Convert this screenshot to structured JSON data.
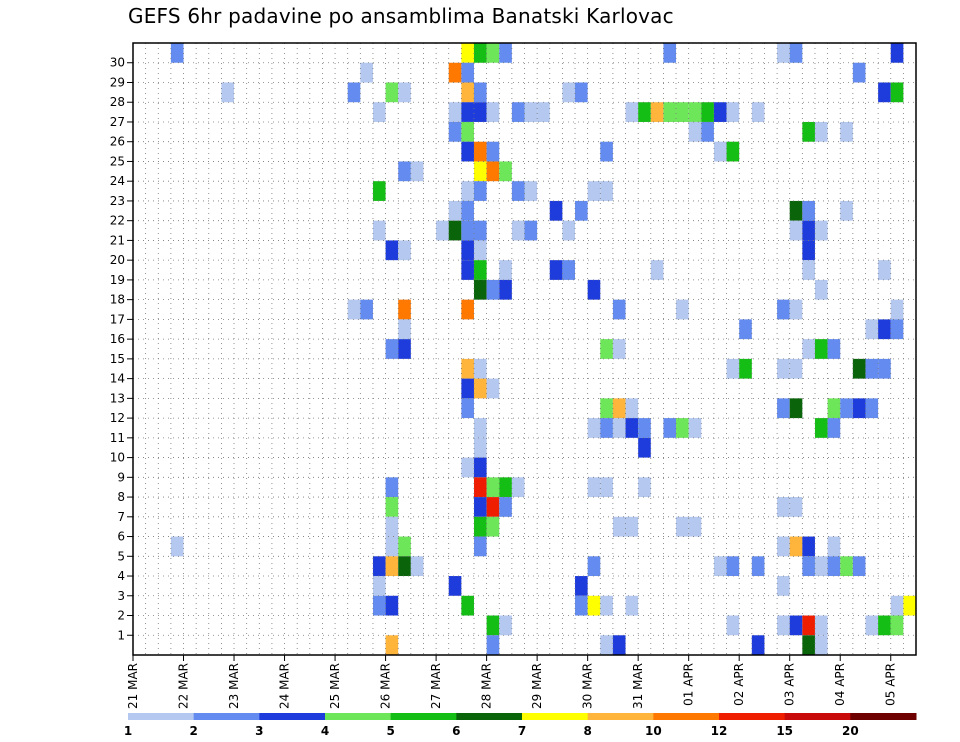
{
  "chart_data": {
    "type": "heatmap",
    "title": "GEFS 6hr padavine po ansamblima Banatski Karlovac",
    "xlabel": "",
    "ylabel": "",
    "x_tick_labels": [
      "21 MAR",
      "22 MAR",
      "23 MAR",
      "24 MAR",
      "25 MAR",
      "26 MAR",
      "27 MAR",
      "28 MAR",
      "29 MAR",
      "30 MAR",
      "31 MAR",
      "01 APR",
      "02 APR",
      "03 APR",
      "04 APR",
      "05 APR"
    ],
    "y_tick_labels": [
      "1",
      "2",
      "3",
      "4",
      "5",
      "6",
      "7",
      "8",
      "9",
      "10",
      "11",
      "12",
      "13",
      "14",
      "15",
      "16",
      "17",
      "18",
      "19",
      "20",
      "21",
      "22",
      "23",
      "24",
      "25",
      "26",
      "27",
      "28",
      "29",
      "30"
    ],
    "x_range_steps": [
      0,
      61
    ],
    "y_range_members": [
      0,
      30
    ],
    "steps_per_day": 4,
    "grid": "dotted",
    "legend": {
      "placement": "bottom",
      "labels": [
        "1",
        "2",
        "3",
        "4",
        "5",
        "6",
        "7",
        "8",
        "10",
        "12",
        "15",
        "20"
      ],
      "colors": [
        "#b4c8f0",
        "#648cf0",
        "#1e3cdc",
        "#6ee65a",
        "#14be14",
        "#0a640a",
        "#ffff00",
        "#ffb43c",
        "#ff7800",
        "#f01e00",
        "#c80a0a",
        "#6e0000"
      ]
    },
    "color_bins": {
      "bin1": "#b4c8f0",
      "bin2": "#648cf0",
      "bin3": "#1e3cdc",
      "bin4": "#6ee65a",
      "bin5": "#14be14",
      "bin6": "#0a640a",
      "bin7": "#ffff00",
      "bin8": "#ffb43c",
      "bin10": "#ff7800",
      "bin12": "#f01e00",
      "bin15": "#c80a0a",
      "bin20": "#6e0000"
    },
    "cells_note": "each cell = [forecast_step, member, bin]",
    "cells": [
      [
        3,
        30,
        2
      ],
      [
        26,
        30,
        7
      ],
      [
        27,
        30,
        5
      ],
      [
        28,
        30,
        4
      ],
      [
        29,
        30,
        2
      ],
      [
        42,
        30,
        2
      ],
      [
        51,
        30,
        1
      ],
      [
        52,
        30,
        2
      ],
      [
        60,
        30,
        3
      ],
      [
        18,
        29,
        1
      ],
      [
        25,
        29,
        10
      ],
      [
        26,
        29,
        2
      ],
      [
        57,
        29,
        2
      ],
      [
        7,
        28,
        1
      ],
      [
        17,
        28,
        2
      ],
      [
        20,
        28,
        4
      ],
      [
        21,
        28,
        1
      ],
      [
        26,
        28,
        8
      ],
      [
        27,
        28,
        2
      ],
      [
        34,
        28,
        1
      ],
      [
        35,
        28,
        2
      ],
      [
        59,
        28,
        3
      ],
      [
        60,
        28,
        5
      ],
      [
        19,
        27,
        1
      ],
      [
        25,
        27,
        1
      ],
      [
        26,
        27,
        3
      ],
      [
        27,
        27,
        3
      ],
      [
        28,
        27,
        1
      ],
      [
        30,
        27,
        2
      ],
      [
        31,
        27,
        1
      ],
      [
        32,
        27,
        1
      ],
      [
        39,
        27,
        1
      ],
      [
        40,
        27,
        5
      ],
      [
        41,
        27,
        8
      ],
      [
        42,
        27,
        4
      ],
      [
        43,
        27,
        4
      ],
      [
        44,
        27,
        4
      ],
      [
        45,
        27,
        5
      ],
      [
        46,
        27,
        3
      ],
      [
        47,
        27,
        1
      ],
      [
        49,
        27,
        1
      ],
      [
        25,
        26,
        2
      ],
      [
        26,
        26,
        4
      ],
      [
        44,
        26,
        1
      ],
      [
        45,
        26,
        2
      ],
      [
        53,
        26,
        5
      ],
      [
        54,
        26,
        1
      ],
      [
        56,
        26,
        1
      ],
      [
        26,
        25,
        3
      ],
      [
        27,
        25,
        10
      ],
      [
        28,
        25,
        2
      ],
      [
        37,
        25,
        2
      ],
      [
        46,
        25,
        1
      ],
      [
        47,
        25,
        5
      ],
      [
        21,
        24,
        2
      ],
      [
        22,
        24,
        1
      ],
      [
        27,
        24,
        7
      ],
      [
        28,
        24,
        10
      ],
      [
        29,
        24,
        4
      ],
      [
        19,
        23,
        5
      ],
      [
        26,
        23,
        1
      ],
      [
        27,
        23,
        2
      ],
      [
        30,
        23,
        2
      ],
      [
        31,
        23,
        1
      ],
      [
        36,
        23,
        1
      ],
      [
        37,
        23,
        1
      ],
      [
        25,
        22,
        1
      ],
      [
        26,
        22,
        2
      ],
      [
        33,
        22,
        3
      ],
      [
        35,
        22,
        2
      ],
      [
        52,
        22,
        6
      ],
      [
        53,
        22,
        2
      ],
      [
        56,
        22,
        1
      ],
      [
        19,
        21,
        1
      ],
      [
        24,
        21,
        1
      ],
      [
        25,
        21,
        6
      ],
      [
        26,
        21,
        2
      ],
      [
        27,
        21,
        2
      ],
      [
        30,
        21,
        1
      ],
      [
        31,
        21,
        2
      ],
      [
        34,
        21,
        1
      ],
      [
        52,
        21,
        1
      ],
      [
        53,
        21,
        3
      ],
      [
        54,
        21,
        1
      ],
      [
        20,
        20,
        3
      ],
      [
        21,
        20,
        1
      ],
      [
        26,
        20,
        3
      ],
      [
        27,
        20,
        1
      ],
      [
        53,
        20,
        3
      ],
      [
        26,
        19,
        3
      ],
      [
        27,
        19,
        5
      ],
      [
        29,
        19,
        1
      ],
      [
        33,
        19,
        3
      ],
      [
        34,
        19,
        2
      ],
      [
        41,
        19,
        1
      ],
      [
        53,
        19,
        1
      ],
      [
        59,
        19,
        1
      ],
      [
        27,
        18,
        6
      ],
      [
        28,
        18,
        2
      ],
      [
        29,
        18,
        3
      ],
      [
        36,
        18,
        3
      ],
      [
        54,
        18,
        1
      ],
      [
        17,
        17,
        1
      ],
      [
        18,
        17,
        2
      ],
      [
        21,
        17,
        10
      ],
      [
        26,
        17,
        10
      ],
      [
        38,
        17,
        2
      ],
      [
        43,
        17,
        1
      ],
      [
        51,
        17,
        2
      ],
      [
        52,
        17,
        1
      ],
      [
        60,
        17,
        1
      ],
      [
        21,
        16,
        1
      ],
      [
        48,
        16,
        2
      ],
      [
        58,
        16,
        1
      ],
      [
        59,
        16,
        3
      ],
      [
        60,
        16,
        2
      ],
      [
        20,
        15,
        2
      ],
      [
        21,
        15,
        3
      ],
      [
        37,
        15,
        4
      ],
      [
        38,
        15,
        1
      ],
      [
        53,
        15,
        1
      ],
      [
        54,
        15,
        5
      ],
      [
        55,
        15,
        2
      ],
      [
        26,
        14,
        8
      ],
      [
        27,
        14,
        1
      ],
      [
        47,
        14,
        1
      ],
      [
        48,
        14,
        5
      ],
      [
        51,
        14,
        1
      ],
      [
        52,
        14,
        1
      ],
      [
        57,
        14,
        6
      ],
      [
        58,
        14,
        2
      ],
      [
        59,
        14,
        2
      ],
      [
        26,
        13,
        3
      ],
      [
        27,
        13,
        8
      ],
      [
        28,
        13,
        1
      ],
      [
        26,
        12,
        2
      ],
      [
        37,
        12,
        4
      ],
      [
        38,
        12,
        8
      ],
      [
        39,
        12,
        1
      ],
      [
        51,
        12,
        2
      ],
      [
        52,
        12,
        6
      ],
      [
        55,
        12,
        4
      ],
      [
        56,
        12,
        2
      ],
      [
        57,
        12,
        3
      ],
      [
        58,
        12,
        2
      ],
      [
        27,
        11,
        1
      ],
      [
        36,
        11,
        1
      ],
      [
        37,
        11,
        2
      ],
      [
        38,
        11,
        1
      ],
      [
        39,
        11,
        3
      ],
      [
        40,
        11,
        2
      ],
      [
        42,
        11,
        2
      ],
      [
        43,
        11,
        4
      ],
      [
        44,
        11,
        1
      ],
      [
        54,
        11,
        5
      ],
      [
        55,
        11,
        2
      ],
      [
        27,
        10,
        1
      ],
      [
        40,
        10,
        3
      ],
      [
        26,
        9,
        1
      ],
      [
        27,
        9,
        3
      ],
      [
        20,
        8,
        2
      ],
      [
        27,
        8,
        12
      ],
      [
        28,
        8,
        4
      ],
      [
        29,
        8,
        5
      ],
      [
        30,
        8,
        1
      ],
      [
        36,
        8,
        1
      ],
      [
        37,
        8,
        1
      ],
      [
        40,
        8,
        1
      ],
      [
        20,
        7,
        4
      ],
      [
        27,
        7,
        3
      ],
      [
        28,
        7,
        12
      ],
      [
        29,
        7,
        2
      ],
      [
        51,
        7,
        1
      ],
      [
        52,
        7,
        1
      ],
      [
        20,
        6,
        1
      ],
      [
        27,
        6,
        5
      ],
      [
        28,
        6,
        4
      ],
      [
        38,
        6,
        1
      ],
      [
        39,
        6,
        1
      ],
      [
        43,
        6,
        1
      ],
      [
        44,
        6,
        1
      ],
      [
        3,
        5,
        1
      ],
      [
        20,
        5,
        1
      ],
      [
        21,
        5,
        4
      ],
      [
        27,
        5,
        2
      ],
      [
        51,
        5,
        1
      ],
      [
        52,
        5,
        8
      ],
      [
        53,
        5,
        3
      ],
      [
        55,
        5,
        1
      ],
      [
        19,
        4,
        3
      ],
      [
        20,
        4,
        8
      ],
      [
        21,
        4,
        6
      ],
      [
        22,
        4,
        1
      ],
      [
        36,
        4,
        2
      ],
      [
        46,
        4,
        1
      ],
      [
        47,
        4,
        2
      ],
      [
        49,
        4,
        2
      ],
      [
        53,
        4,
        2
      ],
      [
        54,
        4,
        1
      ],
      [
        55,
        4,
        2
      ],
      [
        56,
        4,
        4
      ],
      [
        57,
        4,
        2
      ],
      [
        19,
        3,
        1
      ],
      [
        25,
        3,
        3
      ],
      [
        35,
        3,
        3
      ],
      [
        51,
        3,
        1
      ],
      [
        19,
        2,
        2
      ],
      [
        20,
        2,
        3
      ],
      [
        26,
        2,
        5
      ],
      [
        35,
        2,
        2
      ],
      [
        36,
        2,
        7
      ],
      [
        37,
        2,
        1
      ],
      [
        39,
        2,
        1
      ],
      [
        60,
        2,
        1
      ],
      [
        61,
        2,
        7
      ],
      [
        28,
        1,
        5
      ],
      [
        29,
        1,
        1
      ],
      [
        47,
        1,
        1
      ],
      [
        51,
        1,
        1
      ],
      [
        52,
        1,
        3
      ],
      [
        53,
        1,
        12
      ],
      [
        54,
        1,
        1
      ],
      [
        58,
        1,
        1
      ],
      [
        59,
        1,
        5
      ],
      [
        60,
        1,
        4
      ],
      [
        20,
        0,
        8
      ],
      [
        28,
        0,
        2
      ],
      [
        37,
        0,
        1
      ],
      [
        38,
        0,
        3
      ],
      [
        49,
        0,
        3
      ],
      [
        53,
        0,
        6
      ],
      [
        54,
        0,
        1
      ]
    ]
  }
}
